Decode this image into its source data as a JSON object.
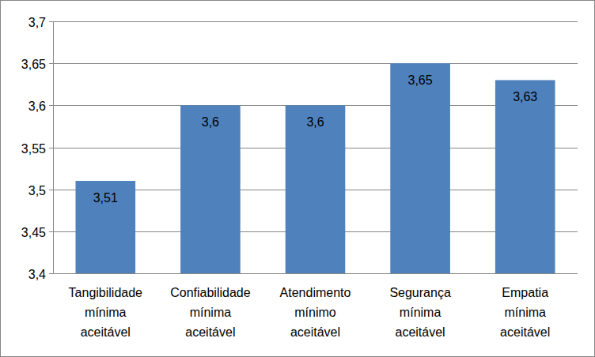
{
  "chart_data": {
    "type": "bar",
    "categories": [
      "Tangibilidade mínima aceitável",
      "Confiabilidade mínima aceitável",
      "Atendimento mínimo aceitável",
      "Segurança mínima aceitável",
      "Empatia mínima aceitável"
    ],
    "values": [
      3.51,
      3.6,
      3.6,
      3.65,
      3.63
    ],
    "value_labels": [
      "3,51",
      "3,6",
      "3,6",
      "3,65",
      "3,63"
    ],
    "color": "#4f81bd",
    "ylim": [
      3.4,
      3.7
    ],
    "yticks": [
      {
        "value": 3.4,
        "label": "3,4"
      },
      {
        "value": 3.45,
        "label": "3,45"
      },
      {
        "value": 3.5,
        "label": "3,5"
      },
      {
        "value": 3.55,
        "label": "3,55"
      },
      {
        "value": 3.6,
        "label": "3,6"
      },
      {
        "value": 3.65,
        "label": "3,65"
      },
      {
        "value": 3.7,
        "label": "3,7"
      }
    ],
    "grid": true,
    "data_labels": true
  }
}
